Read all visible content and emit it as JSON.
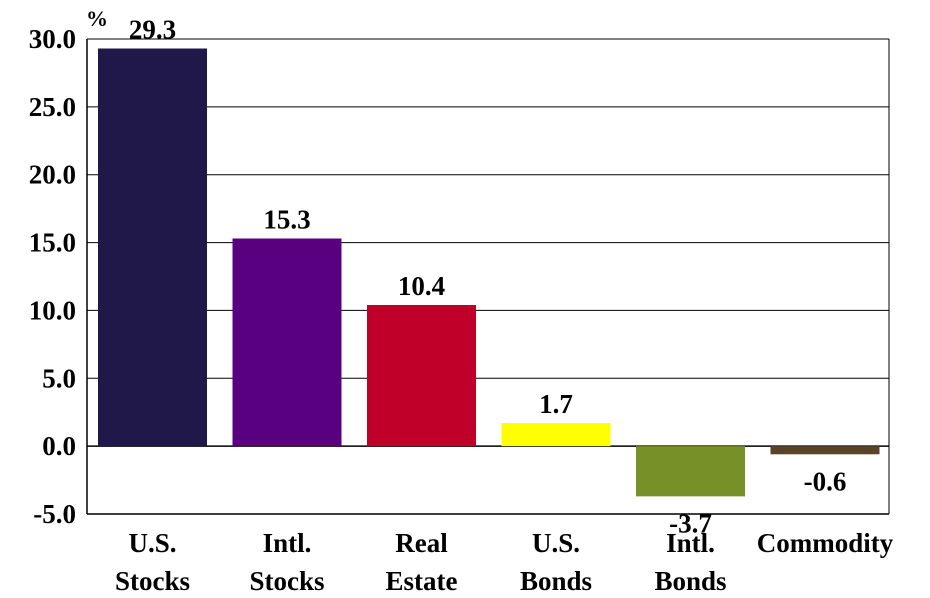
{
  "chart_data": {
    "type": "bar",
    "ylabel": "%",
    "ylim": [
      -5,
      30
    ],
    "yticks": [
      "30.0",
      "25.0",
      "20.0",
      "15.0",
      "10.0",
      "5.0",
      "0.0",
      "-5.0"
    ],
    "ytick_values": [
      30,
      25,
      20,
      15,
      10,
      5,
      0,
      -5
    ],
    "grid": true,
    "categories": [
      [
        "U.S.",
        "Stocks"
      ],
      [
        "Intl.",
        "Stocks"
      ],
      [
        "Real",
        "Estate"
      ],
      [
        "U.S.",
        "Bonds"
      ],
      [
        "Intl.",
        "Bonds"
      ],
      [
        "Commodity"
      ]
    ],
    "values": [
      29.3,
      15.3,
      10.4,
      1.7,
      -3.7,
      -0.6
    ],
    "value_labels": [
      "29.3",
      "15.3",
      "10.4",
      "1.7",
      "-3.7",
      "-0.6"
    ],
    "colors": [
      "#201848",
      "#580080",
      "#c00028",
      "#ffff00",
      "#789028",
      "#5a4326"
    ]
  }
}
